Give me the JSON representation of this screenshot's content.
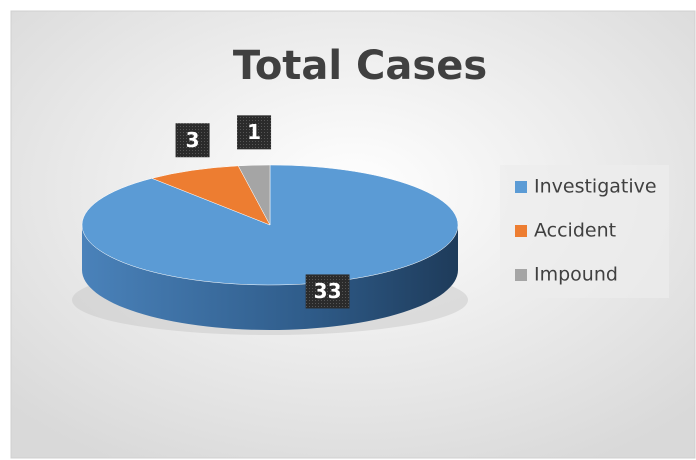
{
  "chart_data": {
    "type": "pie",
    "title": "Total Cases",
    "categories": [
      "Investigative",
      "Accident",
      "Impound"
    ],
    "values": [
      33,
      3,
      1
    ],
    "colors": [
      "#5b9bd5",
      "#ed7d31",
      "#a5a5a5"
    ],
    "legend": "right"
  }
}
